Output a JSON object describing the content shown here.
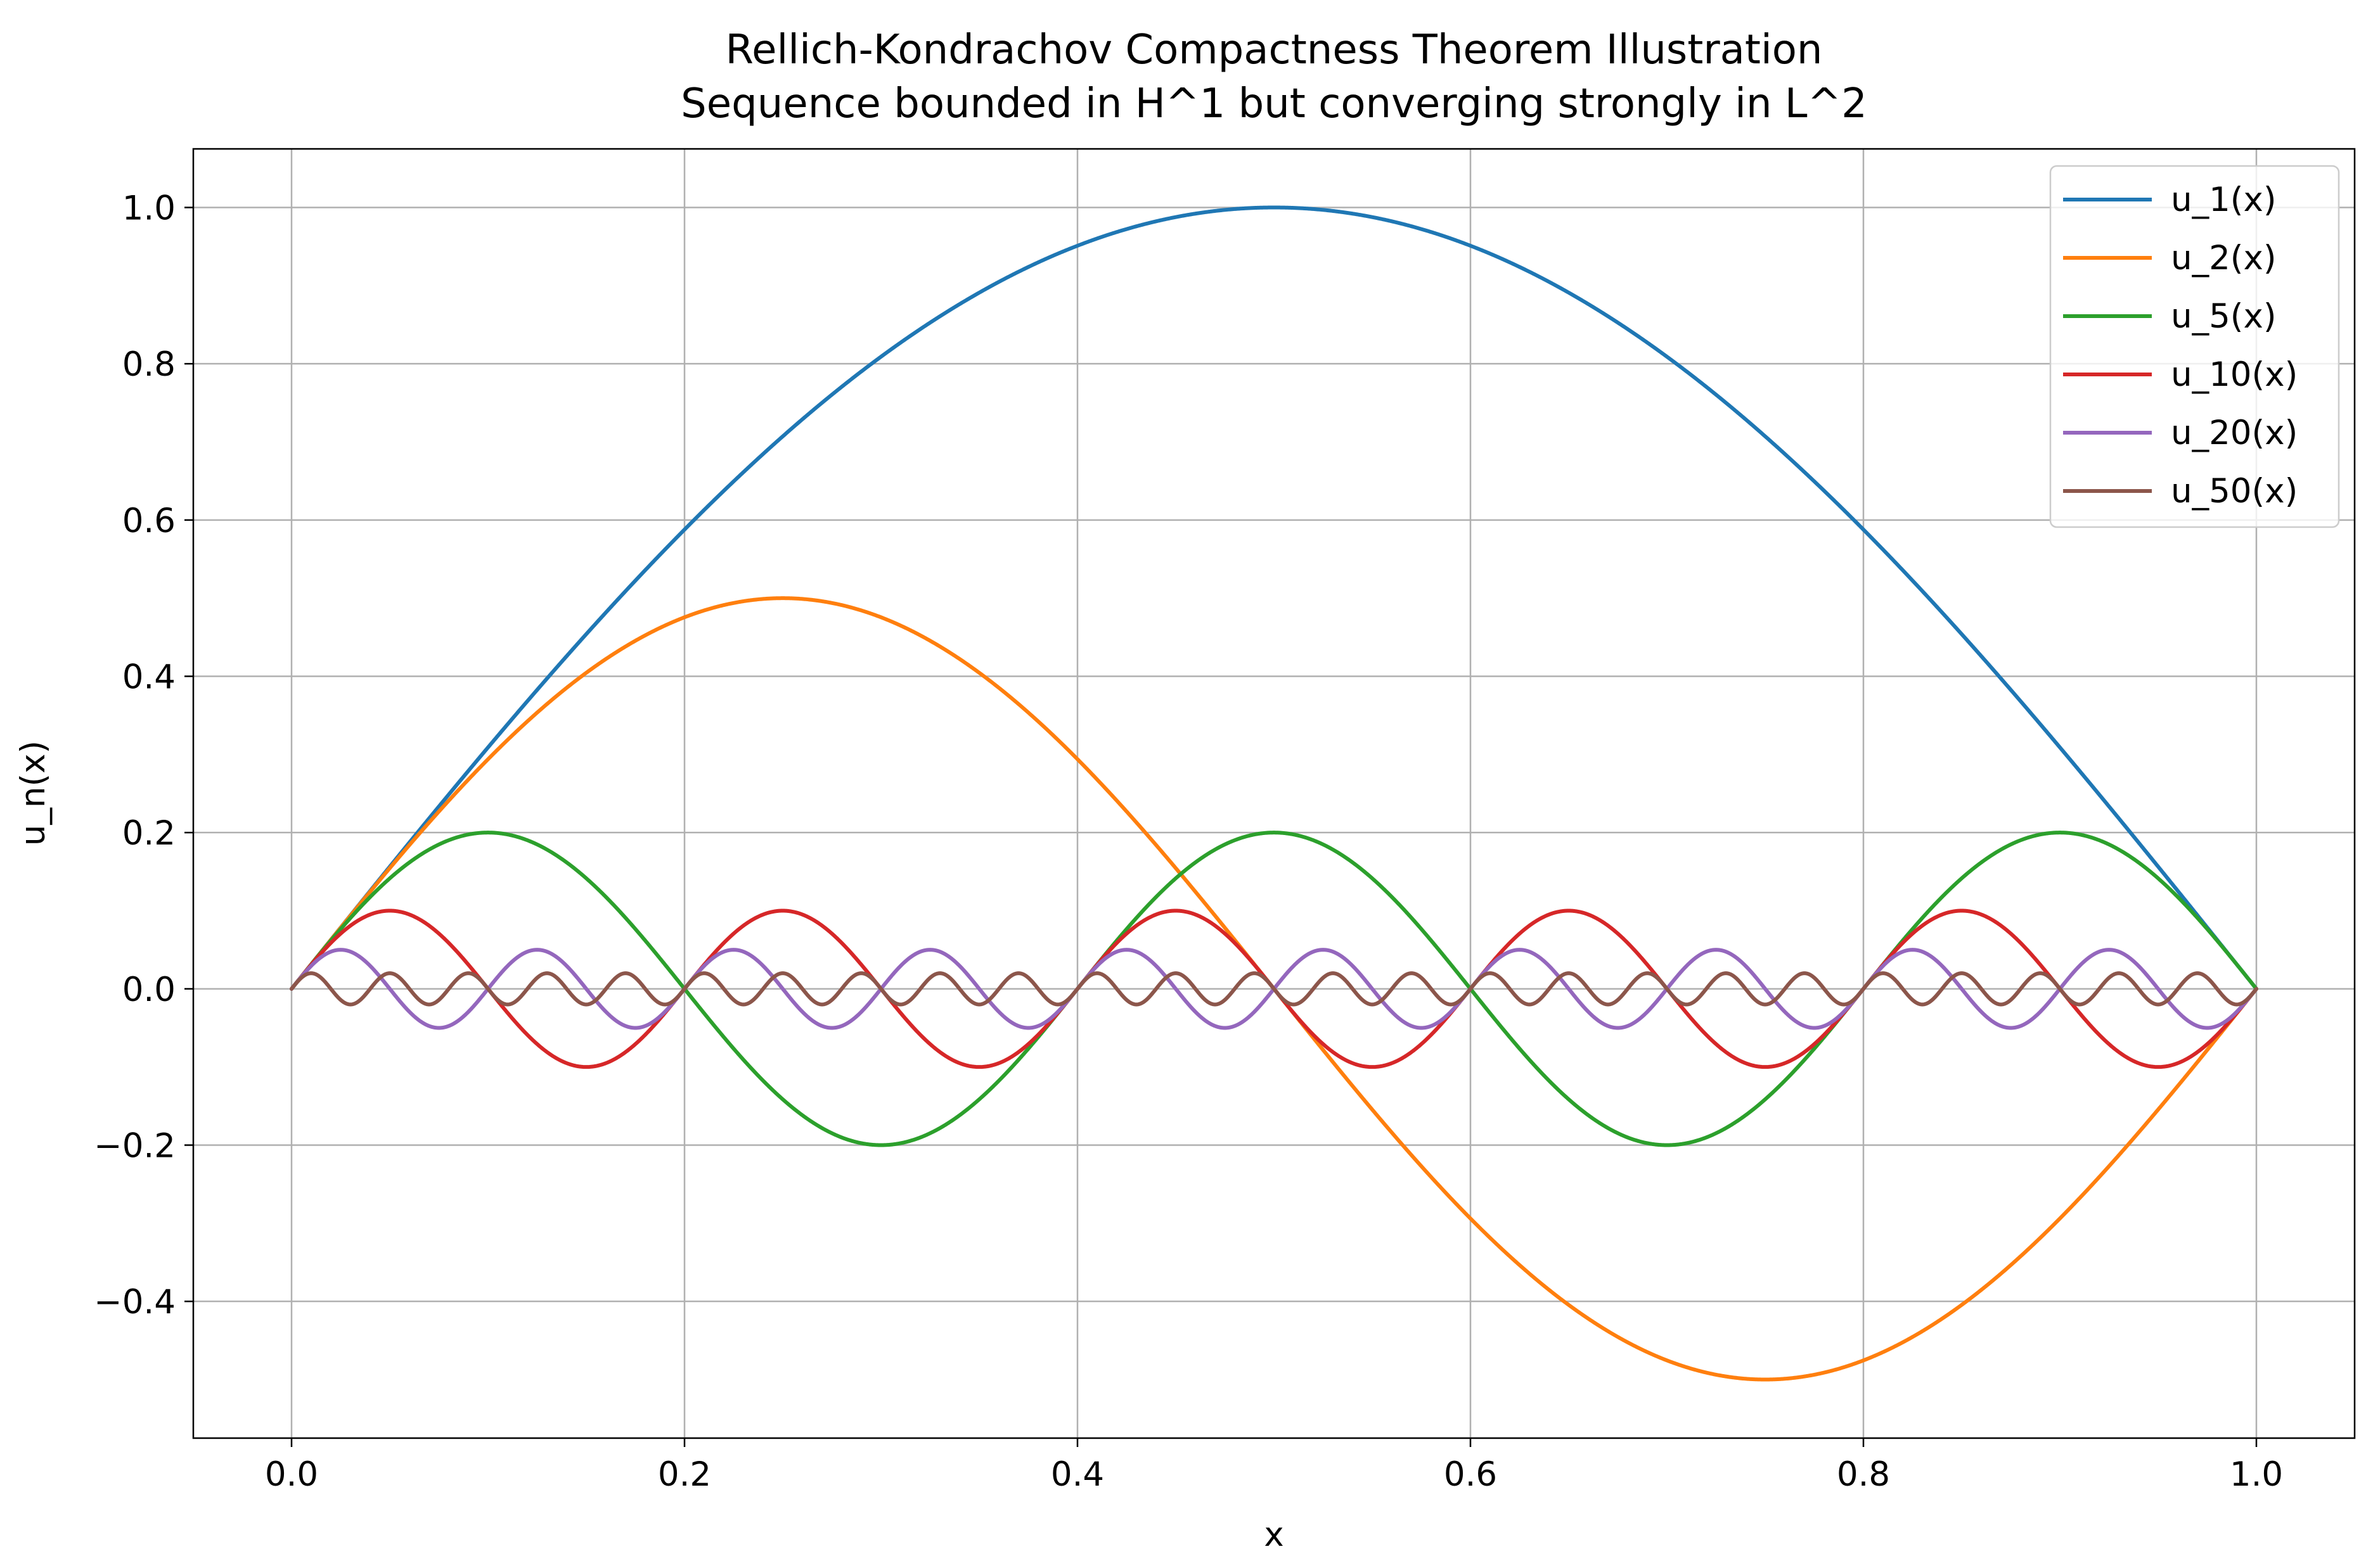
{
  "chart_data": {
    "type": "line",
    "title": "Rellich-Kondrachov Compactness Theorem Illustration",
    "subtitle": "Sequence bounded in H^1 but converging strongly in L^2",
    "xlabel": "x",
    "ylabel": "u_n(x)",
    "xlim": [
      -0.05,
      1.05
    ],
    "ylim": [
      -0.575,
      1.075
    ],
    "xticks": [
      {
        "value": 0.0,
        "label": "0.0"
      },
      {
        "value": 0.2,
        "label": "0.2"
      },
      {
        "value": 0.4,
        "label": "0.4"
      },
      {
        "value": 0.6,
        "label": "0.6"
      },
      {
        "value": 0.8,
        "label": "0.8"
      },
      {
        "value": 1.0,
        "label": "1.0"
      }
    ],
    "yticks": [
      {
        "value": -0.4,
        "label": "−0.4"
      },
      {
        "value": -0.2,
        "label": "−0.2"
      },
      {
        "value": 0.0,
        "label": "0.0"
      },
      {
        "value": 0.2,
        "label": "0.2"
      },
      {
        "value": 0.4,
        "label": "0.4"
      },
      {
        "value": 0.6,
        "label": "0.6"
      },
      {
        "value": 0.8,
        "label": "0.8"
      },
      {
        "value": 1.0,
        "label": "1.0"
      }
    ],
    "grid": true,
    "legend": "top-right",
    "series": [
      {
        "name": "u_1(x)",
        "n": 1,
        "color": "#1f77b4"
      },
      {
        "name": "u_2(x)",
        "n": 2,
        "color": "#ff7f0e"
      },
      {
        "name": "u_5(x)",
        "n": 5,
        "color": "#2ca02c"
      },
      {
        "name": "u_10(x)",
        "n": 10,
        "color": "#d62728"
      },
      {
        "name": "u_20(x)",
        "n": 20,
        "color": "#9467bd"
      },
      {
        "name": "u_50(x)",
        "n": 50,
        "color": "#8c564b"
      }
    ]
  }
}
